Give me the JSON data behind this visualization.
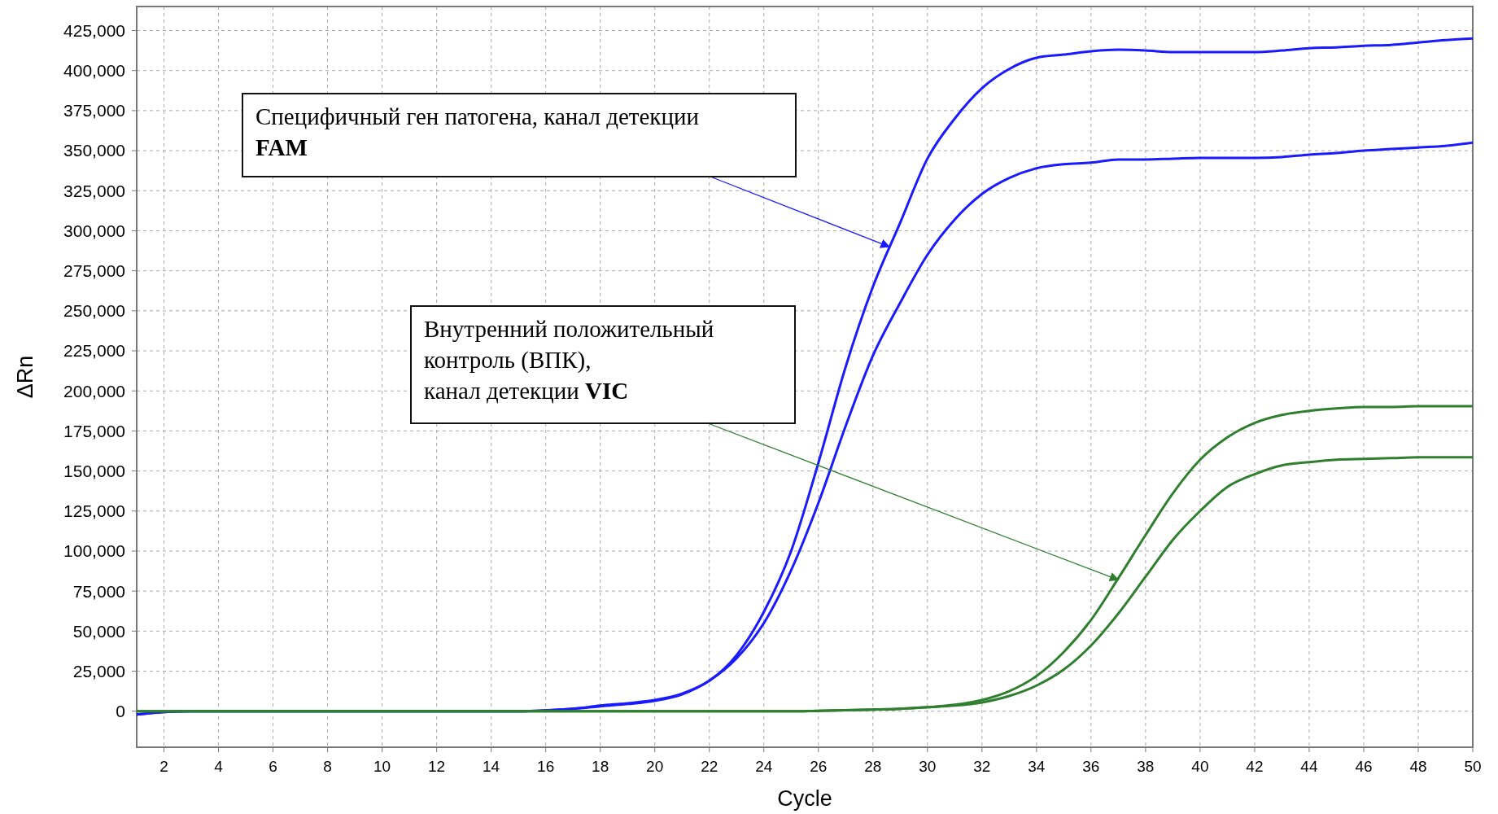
{
  "chart_data": {
    "type": "line",
    "xlabel": "Cycle",
    "ylabel": "ΔRn",
    "x": [
      1,
      2,
      3,
      4,
      5,
      6,
      7,
      8,
      9,
      10,
      11,
      12,
      13,
      14,
      15,
      16,
      17,
      18,
      19,
      20,
      21,
      22,
      23,
      24,
      25,
      26,
      27,
      28,
      29,
      30,
      31,
      32,
      33,
      34,
      35,
      36,
      37,
      38,
      39,
      40,
      41,
      42,
      43,
      44,
      45,
      46,
      47,
      48,
      49,
      50
    ],
    "xlim": [
      1,
      50
    ],
    "xticks": [
      2,
      4,
      6,
      8,
      10,
      12,
      14,
      16,
      18,
      20,
      22,
      24,
      26,
      28,
      30,
      32,
      34,
      36,
      38,
      40,
      42,
      44,
      46,
      48,
      50
    ],
    "ylim": [
      -22500,
      440000
    ],
    "yticks": [
      {
        "value": 0,
        "label": "0"
      },
      {
        "value": 25000,
        "label": "25,000"
      },
      {
        "value": 50000,
        "label": "50,000"
      },
      {
        "value": 75000,
        "label": "75,000"
      },
      {
        "value": 100000,
        "label": "100,000"
      },
      {
        "value": 125000,
        "label": "125,000"
      },
      {
        "value": 150000,
        "label": "150,000"
      },
      {
        "value": 175000,
        "label": "175,000"
      },
      {
        "value": 200000,
        "label": "200,000"
      },
      {
        "value": 225000,
        "label": "225,000"
      },
      {
        "value": 250000,
        "label": "250,000"
      },
      {
        "value": 275000,
        "label": "275,000"
      },
      {
        "value": 300000,
        "label": "300,000"
      },
      {
        "value": 325000,
        "label": "325,000"
      },
      {
        "value": 350000,
        "label": "350,000"
      },
      {
        "value": 375000,
        "label": "375,000"
      },
      {
        "value": 400000,
        "label": "400,000"
      },
      {
        "value": 425000,
        "label": "425,000"
      }
    ],
    "grid": true,
    "marker": "none",
    "line_style": "solid",
    "series": [
      {
        "color": "#1a1aff",
        "values": [
          -2000,
          -500,
          0,
          0,
          0,
          0,
          0,
          0,
          0,
          0,
          0,
          0,
          0,
          0,
          0,
          500,
          1500,
          3500,
          5000,
          7000,
          11000,
          19000,
          35000,
          62000,
          100000,
          155000,
          215000,
          265000,
          305000,
          345000,
          370000,
          389000,
          401000,
          408000,
          410000,
          412000,
          413000,
          412500,
          411500,
          411500,
          411500,
          411500,
          412500,
          414000,
          414500,
          415500,
          416000,
          417500,
          419000,
          420000
        ]
      },
      {
        "color": "#1a1aff",
        "values": [
          -2000,
          -500,
          0,
          0,
          0,
          0,
          0,
          0,
          0,
          0,
          0,
          0,
          0,
          0,
          0,
          500,
          1500,
          3000,
          4500,
          6500,
          10500,
          19000,
          33000,
          55000,
          88000,
          130000,
          178000,
          222000,
          255000,
          285000,
          307000,
          323000,
          333000,
          339000,
          341500,
          342500,
          344500,
          344500,
          345000,
          345500,
          345500,
          345500,
          346000,
          347500,
          348500,
          350000,
          351000,
          352000,
          353000,
          355000
        ]
      },
      {
        "color": "#2f7f2f",
        "values": [
          0,
          0,
          0,
          0,
          0,
          0,
          0,
          0,
          0,
          0,
          0,
          0,
          0,
          0,
          0,
          0,
          0,
          0,
          0,
          0,
          0,
          0,
          0,
          0,
          0,
          300,
          600,
          1000,
          1500,
          2500,
          4000,
          7000,
          12500,
          22000,
          37000,
          57000,
          83000,
          110000,
          136000,
          157000,
          171000,
          180000,
          185000,
          187500,
          189000,
          190000,
          190000,
          190500,
          190500,
          190500
        ]
      },
      {
        "color": "#2f7f2f",
        "values": [
          0,
          0,
          0,
          0,
          0,
          0,
          0,
          0,
          0,
          0,
          0,
          0,
          0,
          0,
          0,
          0,
          0,
          0,
          0,
          0,
          0,
          0,
          0,
          0,
          0,
          300,
          600,
          1000,
          1500,
          2500,
          3500,
          5500,
          9500,
          16000,
          26000,
          41000,
          61000,
          84000,
          107000,
          125000,
          140000,
          148000,
          153500,
          155500,
          157000,
          157500,
          158000,
          158500,
          158500,
          158500
        ]
      }
    ],
    "annotations": [
      {
        "text": "Специфичный ген патогена, канал детекции\nFAM",
        "x": 28.6,
        "y": 290000
      },
      {
        "text": "Внутренний положительный\nконтроль (ВПК),\nканал детекции VIC",
        "x": 37,
        "y": 82000
      }
    ]
  }
}
